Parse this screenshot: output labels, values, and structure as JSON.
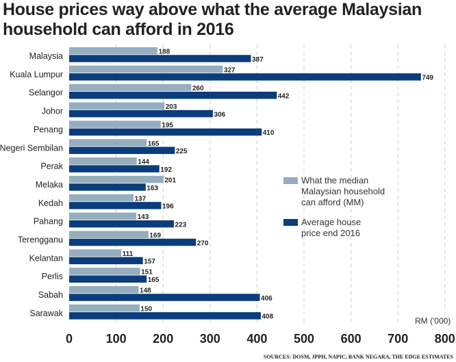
{
  "title": "House prices way above what the average Malaysian household can afford in 2016",
  "colors": {
    "affordable": "#95aebf",
    "average_price": "#0b3d7d"
  },
  "chart_data": {
    "type": "bar",
    "orientation": "horizontal",
    "title": "House prices way above what the average Malaysian household can afford in 2016",
    "categories": [
      "Malaysia",
      "Kuala Lumpur",
      "Selangor",
      "Johor",
      "Penang",
      "Negeri Sembilan",
      "Perak",
      "Melaka",
      "Kedah",
      "Pahang",
      "Terengganu",
      "Kelantan",
      "Perlis",
      "Sabah",
      "Sarawak"
    ],
    "series": [
      {
        "name": "What the median Malaysian household can afford (MM)",
        "color": "#95aebf",
        "values": [
          188,
          327,
          260,
          203,
          195,
          165,
          144,
          201,
          137,
          143,
          169,
          111,
          151,
          148,
          150
        ]
      },
      {
        "name": "Average house price end 2016",
        "color": "#0b3d7d",
        "values": [
          387,
          749,
          442,
          306,
          410,
          225,
          192,
          163,
          196,
          223,
          270,
          157,
          165,
          406,
          408
        ]
      }
    ],
    "xlabel": "RM ('000)",
    "xlim": [
      0,
      800
    ],
    "xticks": [
      "0",
      "100",
      "200",
      "300",
      "400",
      "500",
      "600",
      "700",
      "800"
    ],
    "grid": "vertical dashed",
    "legend": "right"
  },
  "sources": "SOURCES: DOSM, JPPH, NAPIC, BANK NEGARA, THE EDGE ESTIMATES"
}
